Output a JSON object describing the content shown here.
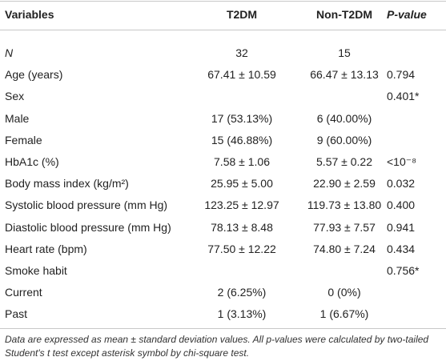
{
  "table": {
    "header": [
      "Variables",
      "T2DM",
      "Non-T2DM",
      "P-value"
    ],
    "rows": [
      [
        "N",
        "32",
        "15",
        null
      ],
      [
        "Age (years)",
        "67.41 ± 10.59",
        "66.47 ± 13.13",
        "0.794"
      ],
      [
        "Sex",
        null,
        null,
        "0.401*"
      ],
      [
        "Male",
        "17 (53.13%)",
        "6 (40.00%)",
        null
      ],
      [
        "Female",
        "15 (46.88%)",
        "9 (60.00%)",
        null
      ],
      [
        "HbA1c (%)",
        "7.58 ± 1.06",
        "5.57 ± 0.22",
        "<10⁻⁸"
      ],
      [
        "Body mass index (kg/m²)",
        "25.95 ± 5.00",
        "22.90 ± 2.59",
        "0.032"
      ],
      [
        "Systolic blood pressure (mm Hg)",
        "123.25 ± 12.97",
        "119.73 ± 13.80",
        "0.400"
      ],
      [
        "Diastolic blood pressure (mm Hg)",
        "78.13 ± 8.48",
        "77.93 ± 7.57",
        "0.941"
      ],
      [
        "Heart rate (bpm)",
        "77.50 ± 12.22",
        "74.80 ± 7.24",
        "0.434"
      ],
      [
        "Smoke habit",
        null,
        null,
        "0.756*"
      ],
      [
        "Current",
        "2 (6.25%)",
        "0 (0%)",
        null
      ],
      [
        "Past",
        "1 (3.13%)",
        "1 (6.67%)",
        null
      ]
    ],
    "footnote": "Data are expressed as mean ± standard deviation values. All p-values were calculated by two-tailed Student's t test except asterisk symbol by chi-square test."
  }
}
